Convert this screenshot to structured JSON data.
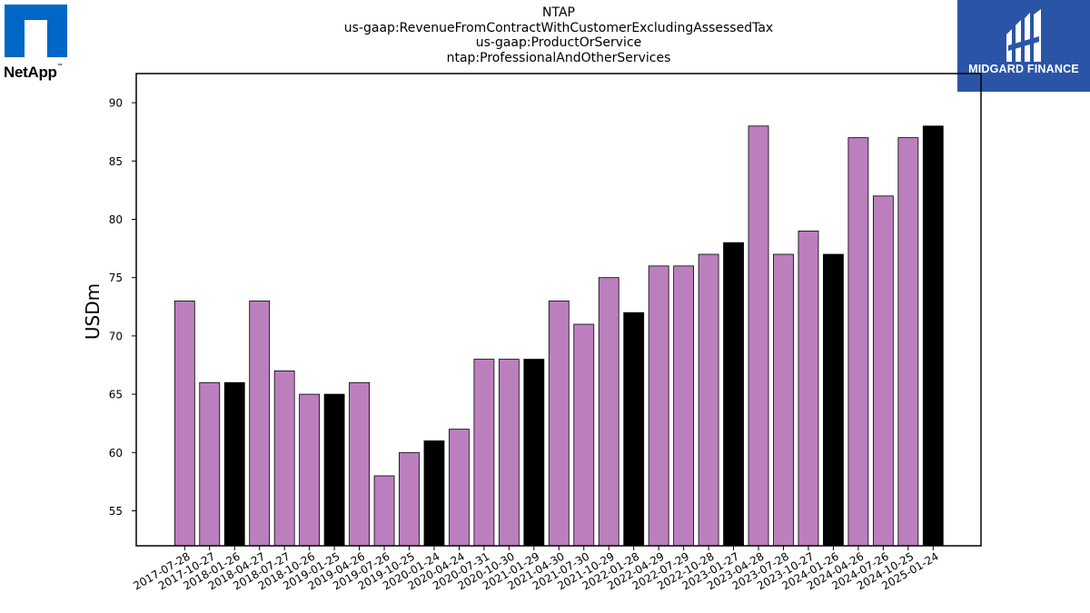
{
  "logos": {
    "left": {
      "text": "NetApp",
      "tm": "™",
      "color": "#0067c5"
    },
    "right": {
      "text": "MIDGARD FINANCE",
      "color": "#2a55a7"
    }
  },
  "titles": [
    "NTAP",
    "us-gaap:RevenueFromContractWithCustomerExcludingAssessedTax",
    "us-gaap:ProductOrService",
    "ntap:ProfessionalAndOtherServices"
  ],
  "chart_data": {
    "type": "bar",
    "ylabel": "USDm",
    "xlabel": "",
    "ylim": [
      52,
      92.5
    ],
    "yticks": [
      55,
      60,
      65,
      70,
      75,
      80,
      85,
      90
    ],
    "colors": {
      "quarter": "#bb7fbe",
      "fiscal_q4": "#000000",
      "edge": "#000000"
    },
    "categories": [
      "2017-07-28",
      "2017-10-27",
      "2018-01-26",
      "2018-04-27",
      "2018-07-27",
      "2018-10-26",
      "2019-01-25",
      "2019-04-26",
      "2019-07-26",
      "2019-10-25",
      "2020-01-24",
      "2020-04-24",
      "2020-07-31",
      "2020-10-30",
      "2021-01-29",
      "2021-04-30",
      "2021-07-30",
      "2021-10-29",
      "2022-01-28",
      "2022-04-29",
      "2022-07-29",
      "2022-10-28",
      "2023-01-27",
      "2023-04-28",
      "2023-07-28",
      "2023-10-27",
      "2024-01-26",
      "2024-04-26",
      "2024-07-26",
      "2024-10-25",
      "2025-01-24"
    ],
    "values": [
      73,
      66,
      66,
      73,
      67,
      65,
      65,
      66,
      58,
      60,
      61,
      62,
      68,
      68,
      68,
      73,
      71,
      75,
      72,
      76,
      76,
      77,
      78,
      88,
      77,
      79,
      77,
      87,
      82,
      87,
      88
    ],
    "highlight": [
      false,
      false,
      true,
      false,
      false,
      false,
      true,
      false,
      false,
      false,
      true,
      false,
      false,
      false,
      true,
      false,
      false,
      false,
      true,
      false,
      false,
      false,
      true,
      false,
      false,
      false,
      true,
      false,
      false,
      false,
      true
    ]
  }
}
